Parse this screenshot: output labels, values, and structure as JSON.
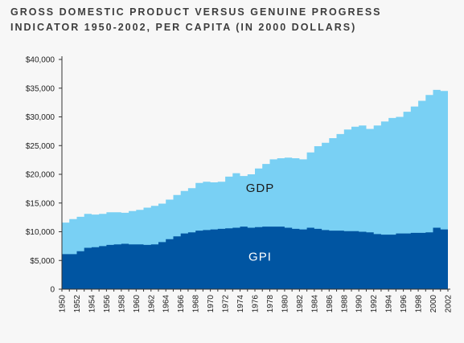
{
  "title_lines": [
    "GROSS DOMESTIC PRODUCT VERSUS GENUINE PROGRESS",
    "INDICATOR 1950-2002, PER CAPITA (IN 2000 DOLLARS)"
  ],
  "colors": {
    "background": "#f7f7f7",
    "gdp_area": "#79d0f4",
    "gpi_area": "#0055a2",
    "gdp_label": "#1a1a1a",
    "gpi_label": "#ffffff",
    "axis": "#333333"
  },
  "chart_data": {
    "type": "area",
    "title": "GROSS DOMESTIC PRODUCT VERSUS GENUINE PROGRESS INDICATOR 1950-2002, PER CAPITA (IN 2000 DOLLARS)",
    "xlabel": "",
    "ylabel": "",
    "stacked": false,
    "grid": false,
    "ylim": [
      0,
      40000
    ],
    "xlim": [
      1950,
      2002
    ],
    "y_ticks": [
      {
        "value": 0,
        "label": "0"
      },
      {
        "value": 5000,
        "label": "$5,000"
      },
      {
        "value": 10000,
        "label": "$10,000"
      },
      {
        "value": 15000,
        "label": "$15,000"
      },
      {
        "value": 20000,
        "label": "$20,000"
      },
      {
        "value": 25000,
        "label": "$25,000"
      },
      {
        "value": 30000,
        "label": "$30,000"
      },
      {
        "value": 35000,
        "label": "$35,000"
      },
      {
        "value": 40000,
        "label": "$40,000"
      }
    ],
    "x_ticks": [
      "1950",
      "1952",
      "1954",
      "1956",
      "1958",
      "1960",
      "1962",
      "1964",
      "1966",
      "1968",
      "1970",
      "1972",
      "1974",
      "1976",
      "1978",
      "1980",
      "1982",
      "1984",
      "1986",
      "1988",
      "1990",
      "1992",
      "1994",
      "1996",
      "1998",
      "2000",
      "2002"
    ],
    "x": [
      1950,
      1951,
      1952,
      1953,
      1954,
      1955,
      1956,
      1957,
      1958,
      1959,
      1960,
      1961,
      1962,
      1963,
      1964,
      1965,
      1966,
      1967,
      1968,
      1969,
      1970,
      1971,
      1972,
      1973,
      1974,
      1975,
      1976,
      1977,
      1978,
      1979,
      1980,
      1981,
      1982,
      1983,
      1984,
      1985,
      1986,
      1987,
      1988,
      1989,
      1990,
      1991,
      1992,
      1993,
      1994,
      1995,
      1996,
      1997,
      1998,
      1999,
      2000,
      2001,
      2002
    ],
    "series": [
      {
        "name": "GDP",
        "values": [
          11600,
          12200,
          12600,
          13100,
          13000,
          13100,
          13400,
          13400,
          13300,
          13600,
          13800,
          14200,
          14500,
          14900,
          15600,
          16400,
          17100,
          17600,
          18500,
          18700,
          18600,
          18700,
          19600,
          20200,
          19700,
          20000,
          21000,
          21800,
          22600,
          22800,
          22900,
          22800,
          22600,
          23800,
          24900,
          25500,
          26300,
          27000,
          27800,
          28300,
          28500,
          27900,
          28500,
          29200,
          29800,
          30000,
          30900,
          31800,
          32800,
          33800,
          34700,
          34500,
          35000
        ]
      },
      {
        "name": "GPI",
        "values": [
          6100,
          6100,
          6600,
          7200,
          7300,
          7500,
          7700,
          7800,
          7900,
          7800,
          7800,
          7700,
          7800,
          8200,
          8700,
          9200,
          9700,
          9900,
          10200,
          10300,
          10400,
          10500,
          10600,
          10700,
          10900,
          10700,
          10800,
          10900,
          10900,
          10900,
          10700,
          10500,
          10400,
          10700,
          10500,
          10300,
          10200,
          10200,
          10100,
          10100,
          10000,
          9900,
          9600,
          9500,
          9500,
          9700,
          9700,
          9800,
          9800,
          9900,
          10700,
          10400,
          10700
        ]
      }
    ]
  }
}
